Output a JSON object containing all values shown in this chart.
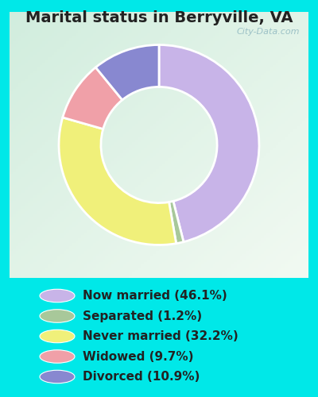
{
  "title": "Marital status in Berryville, VA",
  "slices": [
    46.1,
    1.2,
    32.2,
    9.7,
    10.9
  ],
  "labels": [
    "Now married (46.1%)",
    "Separated (1.2%)",
    "Never married (32.2%)",
    "Widowed (9.7%)",
    "Divorced (10.9%)"
  ],
  "colors": [
    "#c8b4e8",
    "#a8c89a",
    "#f0f07a",
    "#f0a0a8",
    "#8888d0"
  ],
  "startangle": 90,
  "title_fontsize": 14,
  "outer_bg": "#00e8e8",
  "chart_bg": "#d8eedd",
  "watermark": "City-Data.com",
  "legend_fontsize": 11,
  "title_color": "#222222"
}
